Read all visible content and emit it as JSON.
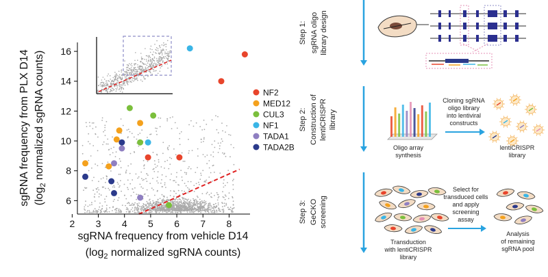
{
  "chart_data": {
    "type": "scatter",
    "xlabel_line1": "sgRNA frequency from vehicle D14",
    "xlabel_line2_pre": "(log",
    "xlabel_line2_sub": "2",
    "xlabel_line2_post": " normalized sgRNA counts)",
    "ylabel_line1": "sgRNA frequency from PLX D14",
    "ylabel_line2_pre": "(log",
    "ylabel_line2_sub": "2",
    "ylabel_line2_post": " normalized sgRNA counts)",
    "xlim": [
      2.2,
      8.8
    ],
    "ylim": [
      5.1,
      16.6
    ],
    "x_ticks": [
      "2",
      "3",
      "4",
      "5",
      "6",
      "7",
      "8"
    ],
    "y_ticks": [
      "6",
      "8",
      "10",
      "12",
      "14",
      "16"
    ],
    "legend_position": "right",
    "series": [
      {
        "name": "NF2",
        "color": "#e8452c",
        "points": [
          [
            4.9,
            8.9
          ],
          [
            7.7,
            14.0
          ],
          [
            8.6,
            15.8
          ],
          [
            6.1,
            8.9
          ]
        ]
      },
      {
        "name": "MED12",
        "color": "#f4a11d",
        "points": [
          [
            2.5,
            8.5
          ],
          [
            3.7,
            10.1
          ],
          [
            3.8,
            10.7
          ],
          [
            4.6,
            11.2
          ],
          [
            3.4,
            8.3
          ]
        ]
      },
      {
        "name": "CUL3",
        "color": "#7bbf3c",
        "points": [
          [
            4.2,
            12.2
          ],
          [
            5.1,
            11.7
          ],
          [
            4.6,
            9.9
          ],
          [
            5.7,
            5.7
          ]
        ]
      },
      {
        "name": "NF1",
        "color": "#3ab5e6",
        "points": [
          [
            6.5,
            16.2
          ],
          [
            4.9,
            9.9
          ]
        ]
      },
      {
        "name": "TADA1",
        "color": "#8f7fc1",
        "points": [
          [
            3.6,
            8.5
          ],
          [
            3.9,
            9.5
          ],
          [
            4.6,
            6.2
          ]
        ]
      },
      {
        "name": "TADA2B",
        "color": "#2b3a8b",
        "points": [
          [
            2.5,
            7.6
          ],
          [
            3.5,
            7.3
          ],
          [
            3.6,
            6.5
          ],
          [
            3.9,
            9.9
          ]
        ]
      }
    ],
    "threshold_line": {
      "color": "#e02020",
      "style": "dashed"
    },
    "background_points_color": "#aaaaaa"
  },
  "workflow": {
    "step1_label": "Step 1:",
    "step1_desc_line1": "sgRNA oligo",
    "step1_desc_line2": "library design",
    "step2_label": "Step 2:",
    "step2_desc_line1": "Construction of",
    "step2_desc_line2": "lentiCRISPR",
    "step2_desc_line3": "library",
    "step3_label": "Step 3:",
    "step3_desc_line1": "GeCKO",
    "step3_desc_line2": "screening",
    "oligo_array_line1": "Oligo array",
    "oligo_array_line2": "synthesis",
    "cloning_line1": "Cloning sgRNA",
    "cloning_line2": "oligo library",
    "cloning_line3": "into lentiviral",
    "cloning_line4": "constructs",
    "lenti_line1": "lentiCRISPR",
    "lenti_line2": "library",
    "select_line1": "Select for",
    "select_line2": "transduced cells",
    "select_line3": "and apply",
    "select_line4": "screening",
    "select_line5": "assay",
    "transduction_line1": "Transduction",
    "transduction_line2": "with lentiCRISPR",
    "transduction_line3": "library",
    "analysis_line1": "Analysis",
    "analysis_line2": "of remaining",
    "analysis_line3": "sgRNA pool",
    "arrow_color": "#29a3e0"
  }
}
